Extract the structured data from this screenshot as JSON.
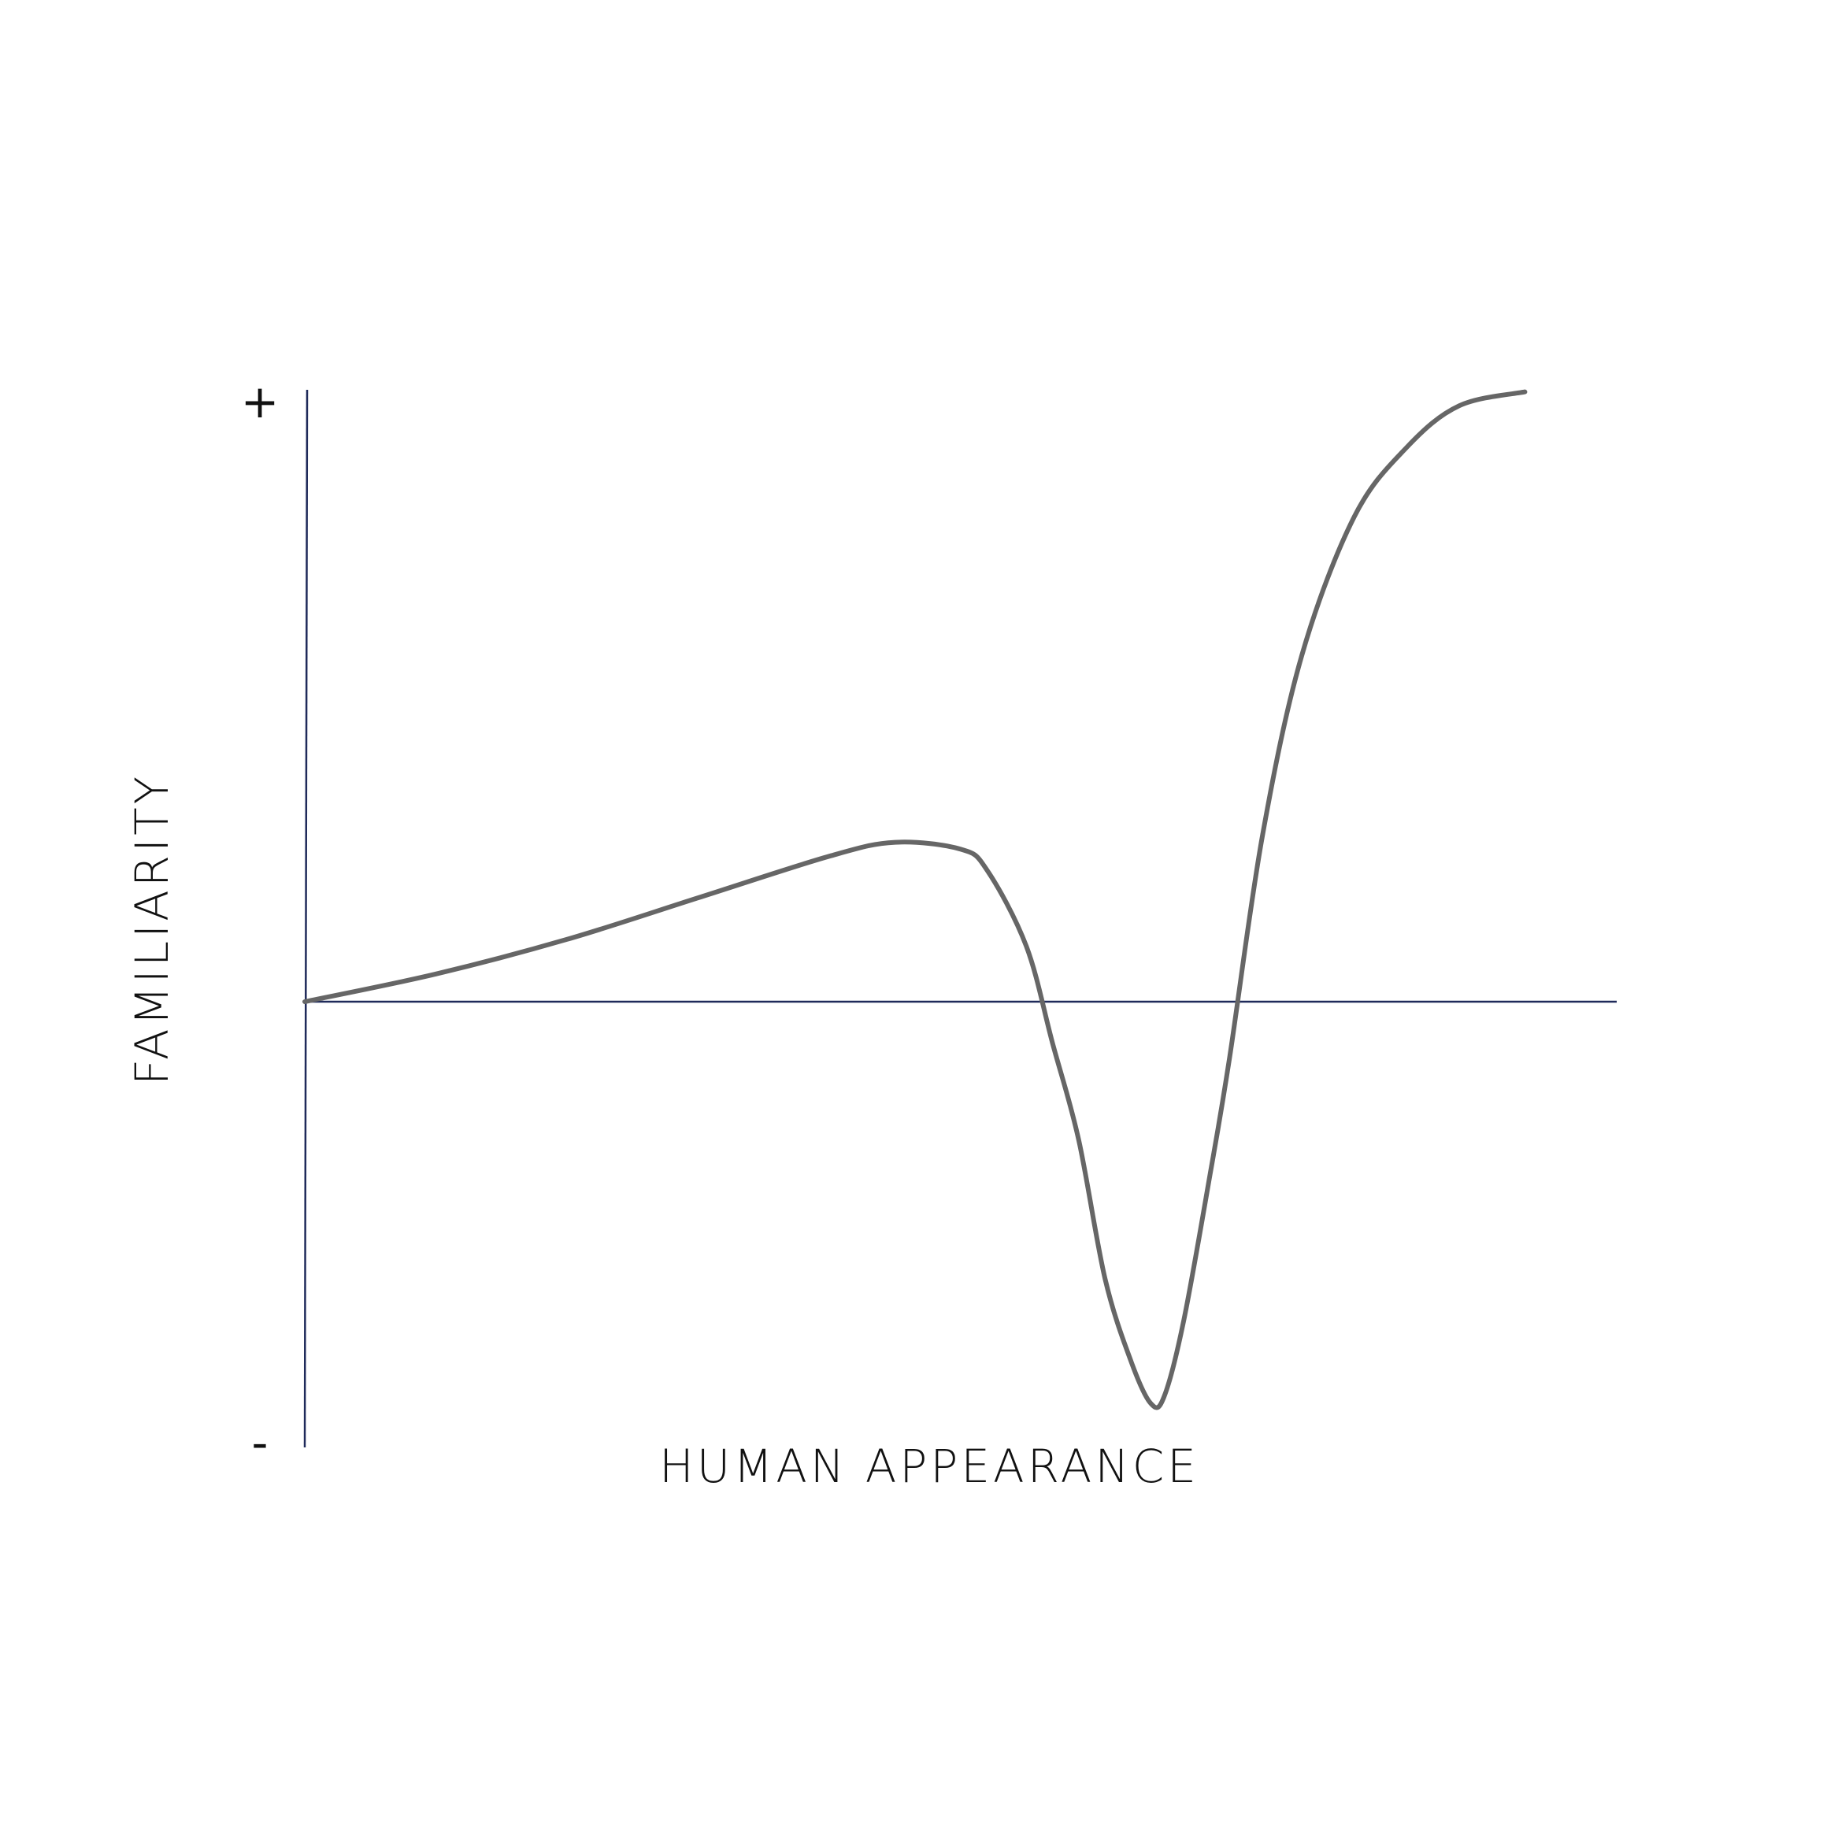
{
  "chart_data": {
    "type": "line",
    "xlabel": "HUMAN APPEARANCE",
    "ylabel": "FAMILIARITY",
    "y_tick_labels": {
      "top": "+",
      "bottom": "-"
    },
    "xlim": [
      0,
      100
    ],
    "ylim": [
      -1,
      1
    ],
    "grid": false,
    "series": [
      {
        "color": "#666666",
        "x": [
          0,
          10,
          20,
          30,
          40,
          45,
          50,
          52,
          55,
          57,
          59,
          61,
          63,
          64.5,
          65.5,
          67,
          69,
          70.5,
          73,
          76,
          80,
          84,
          88,
          93
        ],
        "values": [
          0,
          0.04,
          0.09,
          0.15,
          0.21,
          0.23,
          0.22,
          0.19,
          0.08,
          -0.06,
          -0.2,
          -0.4,
          -0.52,
          -0.58,
          -0.57,
          -0.46,
          -0.25,
          -0.08,
          0.24,
          0.5,
          0.7,
          0.8,
          0.86,
          0.88
        ]
      }
    ]
  }
}
